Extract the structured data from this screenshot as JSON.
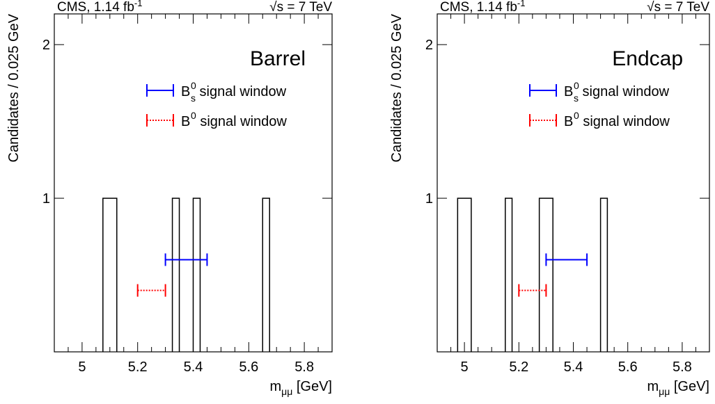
{
  "panels": [
    {
      "header_left": "CMS, 1.14 fb",
      "header_left_sup": "-1",
      "header_right_sqrt": "√",
      "header_right": "s = 7 TeV",
      "region_label": "Barrel",
      "legend": [
        {
          "label_main": "B",
          "label_sup": "0",
          "label_sub": "s",
          "label_rest": " signal window",
          "color": "#0000ff",
          "style": "solid"
        },
        {
          "label_main": "B",
          "label_sup": "0",
          "label_sub": "",
          "label_rest": " signal window",
          "color": "#ff0000",
          "style": "dotted"
        }
      ]
    },
    {
      "header_left": "CMS, 1.14 fb",
      "header_left_sup": "-1",
      "header_right_sqrt": "√",
      "header_right": "s = 7 TeV",
      "region_label": "Endcap",
      "legend": [
        {
          "label_main": "B",
          "label_sup": "0",
          "label_sub": "s",
          "label_rest": " signal window",
          "color": "#0000ff",
          "style": "solid"
        },
        {
          "label_main": "B",
          "label_sup": "0",
          "label_sub": "",
          "label_rest": " signal window",
          "color": "#ff0000",
          "style": "dotted"
        }
      ]
    }
  ],
  "chart_data": [
    {
      "type": "bar",
      "title": "Barrel",
      "xlabel": "m",
      "xlabel_sub": "μμ",
      "xlabel_rest": " [GeV]",
      "ylabel": "Candidates / 0.025 GeV",
      "xlim": [
        4.9,
        5.9
      ],
      "ylim": [
        0,
        2.2
      ],
      "xticks": [
        "5",
        "5.2",
        "5.4",
        "5.6",
        "5.8"
      ],
      "xtick_values": [
        5.0,
        5.2,
        5.4,
        5.6,
        5.8
      ],
      "yticks": [
        "1",
        "2"
      ],
      "ytick_values": [
        1,
        2
      ],
      "bin_width": 0.025,
      "bins": [
        {
          "x_low": 5.075,
          "x_high": 5.125,
          "count": 1
        },
        {
          "x_low": 5.325,
          "x_high": 5.35,
          "count": 1
        },
        {
          "x_low": 5.4,
          "x_high": 5.425,
          "count": 1
        },
        {
          "x_low": 5.65,
          "x_high": 5.675,
          "count": 1
        }
      ],
      "signal_windows": [
        {
          "name": "Bs0 signal window",
          "x_low": 5.3,
          "x_high": 5.45,
          "y": 0.6,
          "color": "#0000ff",
          "style": "solid"
        },
        {
          "name": "B0 signal window",
          "x_low": 5.2,
          "x_high": 5.3,
          "y": 0.4,
          "color": "#ff0000",
          "style": "dotted"
        }
      ],
      "legend_position": "top-right"
    },
    {
      "type": "bar",
      "title": "Endcap",
      "xlabel": "m",
      "xlabel_sub": "μμ",
      "xlabel_rest": " [GeV]",
      "ylabel": "Candidates / 0.025 GeV",
      "xlim": [
        4.9,
        5.9
      ],
      "ylim": [
        0,
        2.2
      ],
      "xticks": [
        "5",
        "5.2",
        "5.4",
        "5.6",
        "5.8"
      ],
      "xtick_values": [
        5.0,
        5.2,
        5.4,
        5.6,
        5.8
      ],
      "yticks": [
        "1",
        "2"
      ],
      "ytick_values": [
        1,
        2
      ],
      "bin_width": 0.025,
      "bins": [
        {
          "x_low": 4.975,
          "x_high": 5.025,
          "count": 1
        },
        {
          "x_low": 5.15,
          "x_high": 5.175,
          "count": 1
        },
        {
          "x_low": 5.275,
          "x_high": 5.325,
          "count": 1
        },
        {
          "x_low": 5.5,
          "x_high": 5.525,
          "count": 1
        }
      ],
      "signal_windows": [
        {
          "name": "Bs0 signal window",
          "x_low": 5.3,
          "x_high": 5.45,
          "y": 0.6,
          "color": "#0000ff",
          "style": "solid"
        },
        {
          "name": "B0 signal window",
          "x_low": 5.2,
          "x_high": 5.3,
          "y": 0.4,
          "color": "#ff0000",
          "style": "dotted"
        }
      ],
      "legend_position": "top-right"
    }
  ]
}
